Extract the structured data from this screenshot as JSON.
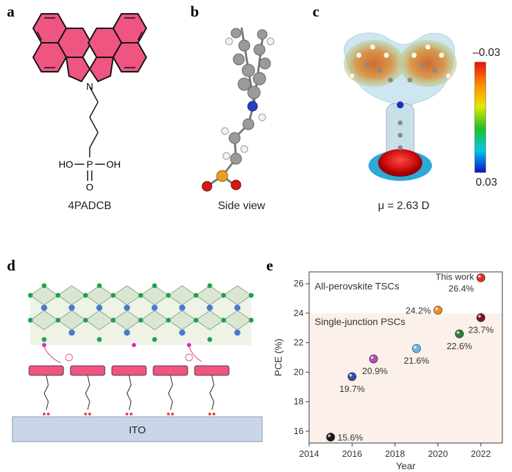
{
  "panels": {
    "a": {
      "letter": "a",
      "caption": "4PADCB",
      "atom_N": "N",
      "atom_P": "P",
      "atom_HO": "HO",
      "atom_OH": "OH",
      "atom_O": "O"
    },
    "b": {
      "letter": "b",
      "caption": "Side view"
    },
    "c": {
      "letter": "c",
      "caption": "μ = 2.63 D",
      "scale_top": "–0.03",
      "scale_bottom": "0.03"
    },
    "d": {
      "letter": "d",
      "substrate_label": "ITO"
    },
    "e": {
      "letter": "e"
    }
  },
  "chart_data": {
    "type": "scatter",
    "xlabel": "Year",
    "ylabel": "PCE (%)",
    "xlim": [
      2014,
      2023
    ],
    "ylim": [
      15.2,
      26.8
    ],
    "xticks": [
      2014,
      2016,
      2018,
      2020,
      2022
    ],
    "yticks": [
      16,
      18,
      20,
      22,
      24,
      26
    ],
    "region_labels": {
      "upper": "All-perovskite TSCs",
      "lower": "Single-junction PSCs"
    },
    "region_boundary_y": 24,
    "points": [
      {
        "x": 2015,
        "y": 15.6,
        "label": "15.6%",
        "color": "#1a1a1a"
      },
      {
        "x": 2016,
        "y": 19.7,
        "label": "19.7%",
        "color": "#2f4fa8"
      },
      {
        "x": 2017,
        "y": 20.9,
        "label": "20.9%",
        "color": "#b04fb0"
      },
      {
        "x": 2019,
        "y": 21.6,
        "label": "21.6%",
        "color": "#6ab6e8"
      },
      {
        "x": 2020,
        "y": 24.2,
        "label": "24.2%",
        "color": "#f08a24"
      },
      {
        "x": 2021,
        "y": 22.6,
        "label": "22.6%",
        "color": "#2e7d3a"
      },
      {
        "x": 2022,
        "y": 23.7,
        "label": "23.7%",
        "color": "#7a1a1a"
      },
      {
        "x": 2022,
        "y": 26.4,
        "label": "26.4%",
        "color": "#e42d2d",
        "extra_label": "This work"
      }
    ]
  }
}
